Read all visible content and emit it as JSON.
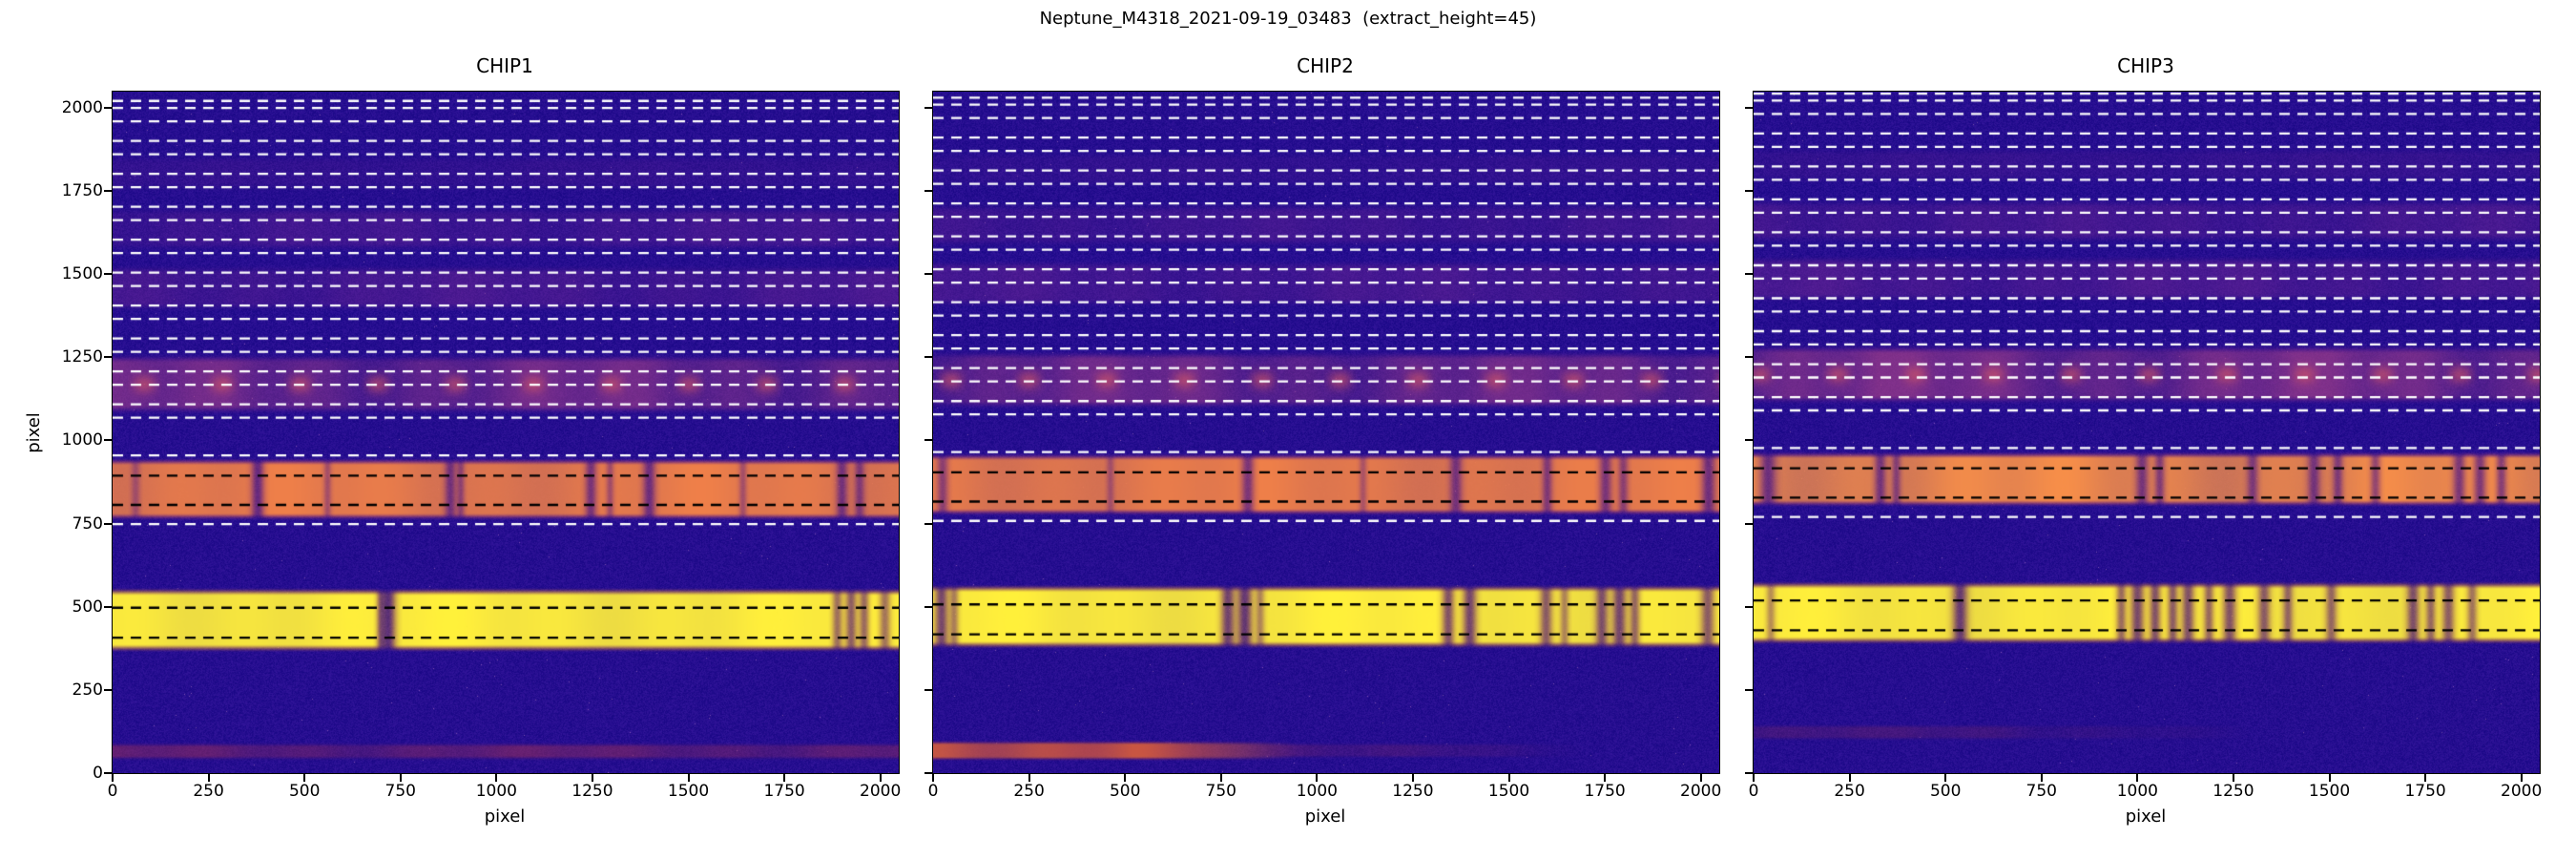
{
  "figure": {
    "suptitle": "Neptune_M4318_2021-09-19_03483  (extract_height=45)",
    "background": "#ffffff",
    "text_color": "#000000"
  },
  "chart_data": {
    "type": "heatmap",
    "title": "Neptune_M4318_2021-09-19_03483  (extract_height=45)",
    "colormap": "plasma",
    "extract_height": 45,
    "xlim": [
      0,
      2048
    ],
    "ylim": [
      0,
      2048
    ],
    "xticks": [
      0,
      250,
      500,
      750,
      1000,
      1250,
      1500,
      1750,
      2000
    ],
    "yticks": [
      0,
      250,
      500,
      750,
      1000,
      1250,
      1500,
      1750,
      2000
    ],
    "grid": false,
    "background_color": "#260e90",
    "extraction": {
      "white_lines_y": [
        748,
        955,
        1068,
        1108,
        1167,
        1207,
        1266,
        1306,
        1365,
        1405,
        1464,
        1504,
        1563,
        1603,
        1662,
        1702,
        1761,
        1801,
        1860,
        1900,
        1959,
        1999,
        2020,
        2060
      ],
      "black_lines_y": [
        407,
        497,
        806,
        894
      ]
    },
    "panels": [
      {
        "title": "CHIP1",
        "xlabel": "pixel",
        "ylabel": "pixel",
        "trace_offset": 0,
        "bands": [
          {
            "name": "faint-bottom-trace",
            "y0": 35,
            "y1": 95,
            "core": "#a63253",
            "edge": "#55156e",
            "alpha": 0.38,
            "soft": 18,
            "mod": 0.35
          },
          {
            "name": "bright-order-A",
            "y0": 362,
            "y1": 558,
            "core": "#f8e73e",
            "edge": "#e56a2f",
            "alpha": 1.0,
            "soft": 26,
            "mod": 0.05,
            "lines": [
              {
                "x": 698,
                "w": 7,
                "a": 0.35
              },
              {
                "x": 718,
                "w": 13,
                "a": 0.72
              },
              {
                "x": 1888,
                "w": 9,
                "a": 0.42
              },
              {
                "x": 1924,
                "w": 10,
                "a": 0.5
              },
              {
                "x": 1958,
                "w": 9,
                "a": 0.45
              },
              {
                "x": 2012,
                "w": 10,
                "a": 0.4
              }
            ]
          },
          {
            "name": "bright-order-B",
            "y0": 758,
            "y1": 948,
            "core": "#ee7f49",
            "edge": "#b63a72",
            "alpha": 0.93,
            "soft": 24,
            "mod": 0.08,
            "lines": [
              {
                "x": 60,
                "w": 8,
                "a": 0.25
              },
              {
                "x": 378,
                "w": 11,
                "a": 0.6
              },
              {
                "x": 560,
                "w": 7,
                "a": 0.28
              },
              {
                "x": 880,
                "w": 10,
                "a": 0.5
              },
              {
                "x": 907,
                "w": 7,
                "a": 0.35
              },
              {
                "x": 1246,
                "w": 10,
                "a": 0.5
              },
              {
                "x": 1296,
                "w": 7,
                "a": 0.3
              },
              {
                "x": 1398,
                "w": 11,
                "a": 0.55
              },
              {
                "x": 1642,
                "w": 7,
                "a": 0.28
              },
              {
                "x": 1900,
                "w": 10,
                "a": 0.5
              },
              {
                "x": 1946,
                "w": 9,
                "a": 0.42
              }
            ]
          },
          {
            "name": "faint-order-C",
            "y0": 1075,
            "y1": 1262,
            "core": "#b04387",
            "edge": "#6d1d86",
            "alpha": 0.42,
            "soft": 30,
            "mod": 0.45,
            "dots": true
          },
          {
            "name": "faint-order-D",
            "y0": 1385,
            "y1": 1530,
            "core": "#8e3093",
            "edge": "#601a82",
            "alpha": 0.27,
            "soft": 30,
            "mod": 0.35
          },
          {
            "name": "faint-order-E",
            "y0": 1565,
            "y1": 1705,
            "core": "#8e3093",
            "edge": "#601a82",
            "alpha": 0.22,
            "soft": 30,
            "mod": 0.35
          },
          {
            "name": "faint-order-F",
            "y0": 1745,
            "y1": 1862,
            "core": "#7e2a8e",
            "edge": "#58157e",
            "alpha": 0.13,
            "soft": 30,
            "mod": 0.3
          }
        ]
      },
      {
        "title": "CHIP2",
        "xlabel": "pixel",
        "trace_offset": 10,
        "bands": [
          {
            "name": "bottom-smear",
            "y0": 35,
            "y1": 100,
            "core": "#ef7030",
            "edge": "#8f1f5a",
            "alpha": 0.8,
            "soft": 16,
            "mod": 0.25,
            "x1": 950,
            "xfade": 430
          },
          {
            "name": "bottom-smear-faint",
            "y0": 40,
            "y1": 95,
            "core": "#a63253",
            "edge": "#55156e",
            "alpha": 0.3,
            "soft": 16,
            "mod": 0.4,
            "x1": 1700,
            "xfade": 800
          },
          {
            "name": "bright-order-A",
            "y0": 372,
            "y1": 568,
            "core": "#f8e73e",
            "edge": "#e56a2f",
            "alpha": 1.0,
            "soft": 26,
            "mod": 0.05,
            "lines": [
              {
                "x": 22,
                "w": 12,
                "a": 0.6
              },
              {
                "x": 55,
                "w": 8,
                "a": 0.35
              },
              {
                "x": 768,
                "w": 12,
                "a": 0.62
              },
              {
                "x": 812,
                "w": 13,
                "a": 0.68
              },
              {
                "x": 852,
                "w": 8,
                "a": 0.32
              },
              {
                "x": 1342,
                "w": 11,
                "a": 0.55
              },
              {
                "x": 1398,
                "w": 12,
                "a": 0.6
              },
              {
                "x": 1597,
                "w": 11,
                "a": 0.5
              },
              {
                "x": 1645,
                "w": 8,
                "a": 0.32
              },
              {
                "x": 1742,
                "w": 11,
                "a": 0.55
              },
              {
                "x": 1788,
                "w": 12,
                "a": 0.6
              },
              {
                "x": 1828,
                "w": 9,
                "a": 0.45
              },
              {
                "x": 2018,
                "w": 12,
                "a": 0.5
              }
            ]
          },
          {
            "name": "bright-order-B",
            "y0": 772,
            "y1": 962,
            "core": "#ee7f49",
            "edge": "#b63a72",
            "alpha": 0.93,
            "soft": 24,
            "mod": 0.08,
            "lines": [
              {
                "x": 25,
                "w": 10,
                "a": 0.4
              },
              {
                "x": 462,
                "w": 7,
                "a": 0.25
              },
              {
                "x": 820,
                "w": 11,
                "a": 0.5
              },
              {
                "x": 1120,
                "w": 7,
                "a": 0.25
              },
              {
                "x": 1362,
                "w": 11,
                "a": 0.5
              },
              {
                "x": 1600,
                "w": 9,
                "a": 0.45
              },
              {
                "x": 1752,
                "w": 11,
                "a": 0.5
              },
              {
                "x": 1798,
                "w": 9,
                "a": 0.4
              },
              {
                "x": 2020,
                "w": 12,
                "a": 0.55
              }
            ]
          },
          {
            "name": "faint-order-C",
            "y0": 1090,
            "y1": 1272,
            "core": "#b04387",
            "edge": "#6d1d86",
            "alpha": 0.4,
            "soft": 30,
            "mod": 0.45,
            "dots": true
          },
          {
            "name": "faint-order-D",
            "y0": 1398,
            "y1": 1545,
            "core": "#8e3093",
            "edge": "#601a82",
            "alpha": 0.26,
            "soft": 30,
            "mod": 0.35
          },
          {
            "name": "faint-order-E",
            "y0": 1578,
            "y1": 1715,
            "core": "#8e3093",
            "edge": "#601a82",
            "alpha": 0.21,
            "soft": 30,
            "mod": 0.35
          },
          {
            "name": "faint-order-F",
            "y0": 1758,
            "y1": 1872,
            "core": "#7e2a8e",
            "edge": "#58157e",
            "alpha": 0.12,
            "soft": 30,
            "mod": 0.3
          }
        ]
      },
      {
        "title": "CHIP3",
        "xlabel": "pixel",
        "trace_offset": 22,
        "bands": [
          {
            "name": "bottom-smear-faint",
            "y0": 95,
            "y1": 150,
            "core": "#8f2f55",
            "edge": "#50156e",
            "alpha": 0.22,
            "soft": 16,
            "mod": 0.5,
            "x1": 1300,
            "xfade": 650
          },
          {
            "name": "bright-order-A",
            "y0": 385,
            "y1": 578,
            "core": "#f8e73e",
            "edge": "#e56a2f",
            "alpha": 1.0,
            "soft": 26,
            "mod": 0.05,
            "lines": [
              {
                "x": 45,
                "w": 8,
                "a": 0.3
              },
              {
                "x": 538,
                "w": 13,
                "a": 0.65
              },
              {
                "x": 958,
                "w": 9,
                "a": 0.45
              },
              {
                "x": 1000,
                "w": 12,
                "a": 0.6
              },
              {
                "x": 1046,
                "w": 10,
                "a": 0.55
              },
              {
                "x": 1092,
                "w": 9,
                "a": 0.5
              },
              {
                "x": 1132,
                "w": 11,
                "a": 0.55
              },
              {
                "x": 1186,
                "w": 9,
                "a": 0.45
              },
              {
                "x": 1240,
                "w": 12,
                "a": 0.55
              },
              {
                "x": 1330,
                "w": 11,
                "a": 0.5
              },
              {
                "x": 1392,
                "w": 9,
                "a": 0.45
              },
              {
                "x": 1505,
                "w": 10,
                "a": 0.45
              },
              {
                "x": 1718,
                "w": 11,
                "a": 0.55
              },
              {
                "x": 1764,
                "w": 9,
                "a": 0.45
              },
              {
                "x": 1810,
                "w": 11,
                "a": 0.5
              },
              {
                "x": 1872,
                "w": 9,
                "a": 0.4
              }
            ]
          },
          {
            "name": "bright-order-B",
            "y0": 798,
            "y1": 968,
            "core": "#f08a4b",
            "edge": "#b63a72",
            "alpha": 0.93,
            "soft": 24,
            "mod": 0.12,
            "lines": [
              {
                "x": 38,
                "w": 14,
                "a": 0.55
              },
              {
                "x": 330,
                "w": 10,
                "a": 0.5
              },
              {
                "x": 372,
                "w": 8,
                "a": 0.4
              },
              {
                "x": 1012,
                "w": 11,
                "a": 0.5
              },
              {
                "x": 1058,
                "w": 9,
                "a": 0.45
              },
              {
                "x": 1300,
                "w": 10,
                "a": 0.45
              },
              {
                "x": 1460,
                "w": 11,
                "a": 0.5
              },
              {
                "x": 1522,
                "w": 9,
                "a": 0.45
              },
              {
                "x": 1620,
                "w": 9,
                "a": 0.4
              },
              {
                "x": 1838,
                "w": 11,
                "a": 0.5
              },
              {
                "x": 1892,
                "w": 11,
                "a": 0.5
              },
              {
                "x": 1948,
                "w": 9,
                "a": 0.45
              }
            ]
          },
          {
            "name": "faint-order-C",
            "y0": 1105,
            "y1": 1290,
            "core": "#b04387",
            "edge": "#6d1d86",
            "alpha": 0.48,
            "soft": 30,
            "mod": 0.45,
            "dots": true
          },
          {
            "name": "faint-order-D",
            "y0": 1412,
            "y1": 1558,
            "core": "#8e3093",
            "edge": "#601a82",
            "alpha": 0.3,
            "soft": 30,
            "mod": 0.35
          },
          {
            "name": "faint-order-E",
            "y0": 1590,
            "y1": 1728,
            "core": "#8e3093",
            "edge": "#601a82",
            "alpha": 0.25,
            "soft": 30,
            "mod": 0.35
          },
          {
            "name": "faint-order-F",
            "y0": 1770,
            "y1": 1885,
            "core": "#7e2a8e",
            "edge": "#58157e",
            "alpha": 0.15,
            "soft": 30,
            "mod": 0.3
          }
        ]
      }
    ]
  }
}
